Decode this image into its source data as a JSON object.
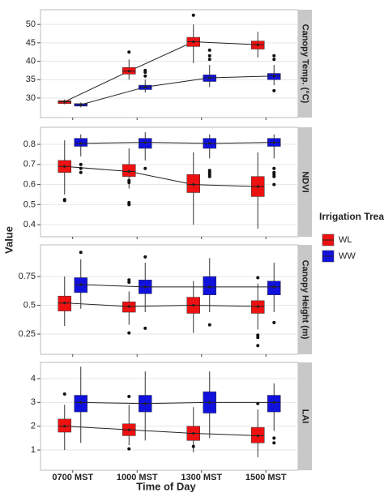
{
  "figure": {
    "xlabel": "Time of Day",
    "ylabel": "Value",
    "legend_title": "Irrigation Treatment",
    "categories": [
      "0700 MST",
      "1000 MST",
      "1300 MST",
      "1500 MST"
    ]
  },
  "chart_data": [
    {
      "type": "box",
      "title": "Canopy Temp. (°C)",
      "ylim": [
        24.7,
        54
      ],
      "yticks": [
        30,
        35,
        40,
        45,
        50
      ],
      "grid": true,
      "series": [
        {
          "name": "WL",
          "color": "#ee1111",
          "boxes": [
            {
              "whislo": 28.3,
              "q1": 28.5,
              "med": 29,
              "q3": 29.3,
              "whishi": 29.6,
              "fliers": []
            },
            {
              "whislo": 35,
              "q1": 36.5,
              "med": 37.3,
              "q3": 38.3,
              "whishi": 40.5,
              "fliers": [
                42.5
              ]
            },
            {
              "whislo": 39.5,
              "q1": 44,
              "med": 45.3,
              "q3": 46.5,
              "whishi": 50,
              "fliers": [
                52.5
              ]
            },
            {
              "whislo": 41,
              "q1": 43.3,
              "med": 44.5,
              "q3": 45.5,
              "whishi": 48,
              "fliers": []
            }
          ]
        },
        {
          "name": "WW",
          "color": "#1111dd",
          "boxes": [
            {
              "whislo": 27.5,
              "q1": 27.8,
              "med": 28.2,
              "q3": 28.5,
              "whishi": 28.8,
              "fliers": []
            },
            {
              "whislo": 31.5,
              "q1": 32.3,
              "med": 33,
              "q3": 33.5,
              "whishi": 35,
              "fliers": [
                36,
                37,
                37.5
              ]
            },
            {
              "whislo": 33,
              "q1": 34.5,
              "med": 35.5,
              "q3": 36.3,
              "whishi": 39,
              "fliers": [
                40.5,
                41.5,
                43
              ]
            },
            {
              "whislo": 33.5,
              "q1": 35,
              "med": 36,
              "q3": 36.7,
              "whishi": 39,
              "fliers": [
                32,
                40.5,
                41.5
              ]
            }
          ]
        }
      ]
    },
    {
      "type": "box",
      "title": "NDVI",
      "ylim": [
        0.34,
        0.885
      ],
      "yticks": [
        0.4,
        0.5,
        0.6,
        0.7,
        0.8
      ],
      "grid": true,
      "series": [
        {
          "name": "WL",
          "color": "#ee1111",
          "boxes": [
            {
              "whislo": 0.55,
              "q1": 0.66,
              "med": 0.69,
              "q3": 0.72,
              "whishi": 0.82,
              "fliers": [
                0.52,
                0.525
              ]
            },
            {
              "whislo": 0.58,
              "q1": 0.64,
              "med": 0.665,
              "q3": 0.7,
              "whishi": 0.78,
              "fliers": [
                0.5,
                0.51,
                0.61,
                0.62
              ]
            },
            {
              "whislo": 0.4,
              "q1": 0.56,
              "med": 0.6,
              "q3": 0.65,
              "whishi": 0.76,
              "fliers": []
            },
            {
              "whislo": 0.38,
              "q1": 0.54,
              "med": 0.59,
              "q3": 0.64,
              "whishi": 0.76,
              "fliers": []
            }
          ]
        },
        {
          "name": "WW",
          "color": "#1111dd",
          "boxes": [
            {
              "whislo": 0.74,
              "q1": 0.79,
              "med": 0.805,
              "q3": 0.83,
              "whishi": 0.85,
              "fliers": [
                0.66,
                0.68,
                0.7
              ]
            },
            {
              "whislo": 0.72,
              "q1": 0.78,
              "med": 0.81,
              "q3": 0.83,
              "whishi": 0.86,
              "fliers": [
                0.68
              ]
            },
            {
              "whislo": 0.73,
              "q1": 0.78,
              "med": 0.805,
              "q3": 0.83,
              "whishi": 0.85,
              "fliers": [
                0.64,
                0.65,
                0.66,
                0.67
              ]
            },
            {
              "whislo": 0.73,
              "q1": 0.79,
              "med": 0.81,
              "q3": 0.83,
              "whishi": 0.85,
              "fliers": [
                0.6,
                0.64,
                0.65,
                0.66,
                0.68
              ]
            }
          ]
        }
      ]
    },
    {
      "type": "box",
      "title": "Canopy Height (m)",
      "ylim": [
        0.074,
        1.025
      ],
      "yticks": [
        0.25,
        0.5,
        0.75
      ],
      "grid": true,
      "series": [
        {
          "name": "WL",
          "color": "#ee1111",
          "boxes": [
            {
              "whislo": 0.32,
              "q1": 0.45,
              "med": 0.52,
              "q3": 0.58,
              "whishi": 0.75,
              "fliers": []
            },
            {
              "whislo": 0.33,
              "q1": 0.44,
              "med": 0.49,
              "q3": 0.53,
              "whishi": 0.62,
              "fliers": [
                0.26,
                0.7,
                0.72
              ]
            },
            {
              "whislo": 0.26,
              "q1": 0.43,
              "med": 0.5,
              "q3": 0.57,
              "whishi": 0.71,
              "fliers": []
            },
            {
              "whislo": 0.29,
              "q1": 0.43,
              "med": 0.49,
              "q3": 0.54,
              "whishi": 0.69,
              "fliers": [
                0.15,
                0.22,
                0.24,
                0.74
              ]
            }
          ]
        },
        {
          "name": "WW",
          "color": "#1111dd",
          "boxes": [
            {
              "whislo": 0.47,
              "q1": 0.61,
              "med": 0.68,
              "q3": 0.74,
              "whishi": 0.9,
              "fliers": [
                0.96
              ]
            },
            {
              "whislo": 0.44,
              "q1": 0.6,
              "med": 0.66,
              "q3": 0.72,
              "whishi": 0.87,
              "fliers": [
                0.3,
                0.92
              ]
            },
            {
              "whislo": 0.44,
              "q1": 0.59,
              "med": 0.66,
              "q3": 0.75,
              "whishi": 0.91,
              "fliers": [
                0.33
              ]
            },
            {
              "whislo": 0.44,
              "q1": 0.59,
              "med": 0.66,
              "q3": 0.71,
              "whishi": 0.87,
              "fliers": [
                0.35
              ]
            }
          ]
        }
      ]
    },
    {
      "type": "box",
      "title": "LAI",
      "ylim": [
        0.15,
        4.68
      ],
      "yticks": [
        1,
        2,
        3,
        4
      ],
      "grid": true,
      "series": [
        {
          "name": "WL",
          "color": "#ee1111",
          "boxes": [
            {
              "whislo": 1,
              "q1": 1.75,
              "med": 2,
              "q3": 2.3,
              "whishi": 2.9,
              "fliers": [
                3.35
              ]
            },
            {
              "whislo": 1.2,
              "q1": 1.6,
              "med": 1.85,
              "q3": 2.1,
              "whishi": 2.9,
              "fliers": [
                1.05,
                3.25
              ]
            },
            {
              "whislo": 0.9,
              "q1": 1.4,
              "med": 1.7,
              "q3": 2,
              "whishi": 2.8,
              "fliers": [
                1.15
              ]
            },
            {
              "whislo": 0.7,
              "q1": 1.3,
              "med": 1.6,
              "q3": 1.95,
              "whishi": 2.7,
              "fliers": [
                2.95
              ]
            }
          ]
        },
        {
          "name": "WW",
          "color": "#1111dd",
          "boxes": [
            {
              "whislo": 1.3,
              "q1": 2.6,
              "med": 3,
              "q3": 3.3,
              "whishi": 4.5,
              "fliers": []
            },
            {
              "whislo": 1.4,
              "q1": 2.6,
              "med": 2.95,
              "q3": 3.3,
              "whishi": 4.3,
              "fliers": []
            },
            {
              "whislo": 1.5,
              "q1": 2.55,
              "med": 3,
              "q3": 3.45,
              "whishi": 4.3,
              "fliers": []
            },
            {
              "whislo": 1.8,
              "q1": 2.6,
              "med": 3,
              "q3": 3.3,
              "whishi": 3.8,
              "fliers": [
                1.5,
                1.3
              ]
            }
          ]
        }
      ]
    }
  ]
}
